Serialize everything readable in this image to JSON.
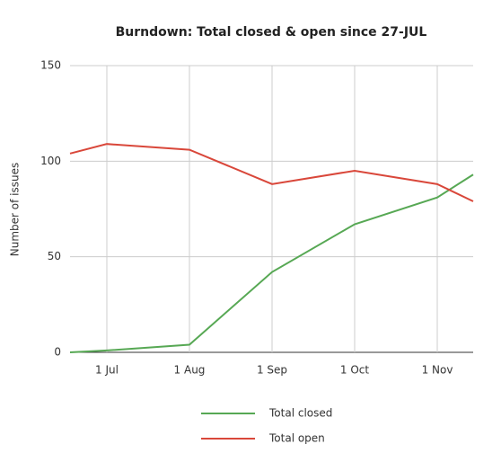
{
  "chart_data": {
    "type": "line",
    "title": "Burndown: Total closed & open since 27-JUL",
    "y_label": "Number of issues",
    "categories": [
      null,
      "1 Jul",
      "1 Aug",
      "1 Sep",
      "1 Oct",
      "1 Nov",
      null
    ],
    "series": [
      {
        "name": "Total closed",
        "color": "#57a854",
        "values": [
          0,
          1,
          4,
          42,
          67,
          81,
          93
        ]
      },
      {
        "name": "Total open",
        "color": "#d9473a",
        "values": [
          104,
          109,
          106,
          88,
          95,
          88,
          79
        ]
      }
    ],
    "ylim": [
      0,
      150
    ],
    "yticks": [
      0,
      50,
      100,
      150
    ],
    "grid": true,
    "legend": "bottom"
  }
}
